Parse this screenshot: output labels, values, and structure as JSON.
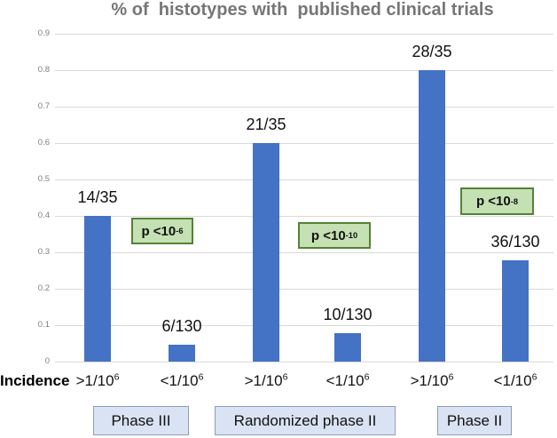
{
  "title": "% of  histotypes with  published clinical trials",
  "y_axis": {
    "ticks": [
      "0.9",
      "0.8",
      "0.7",
      "0.6",
      "0.5",
      "0.4",
      "0.3",
      "0.2",
      "0.1",
      "0"
    ],
    "min": 0,
    "max": 0.9
  },
  "x_axis": {
    "axis_label": "Incidence",
    "labels": [
      {
        "base": ">1/10",
        "sup": "6"
      },
      {
        "base": "<1/10",
        "sup": "6"
      },
      {
        "base": ">1/10",
        "sup": "6"
      },
      {
        "base": "<1/10",
        "sup": "6"
      },
      {
        "base": ">1/10",
        "sup": "6"
      },
      {
        "base": "<1/10",
        "sup": "6"
      }
    ]
  },
  "bars": {
    "labels": [
      "14/35",
      "6/130",
      "21/35",
      "10/130",
      "28/35",
      "36/130"
    ]
  },
  "p_boxes": [
    {
      "base": "p <10",
      "sup": "-6",
      "text": "p <10⁻⁶"
    },
    {
      "base": "p <10",
      "sup": "-10",
      "text": "p <10⁻¹⁰"
    },
    {
      "base": "p <10",
      "sup": "-8",
      "text": "p <10⁻⁸"
    }
  ],
  "groups": [
    "Phase III",
    "Randomized phase II",
    "Phase II"
  ],
  "colors": {
    "bar": "#4472c4",
    "title": "#767676",
    "gridline": "#d9d9d9",
    "tick": "#7d7d7d",
    "p_box_fill": "#c5e0b3",
    "p_box_border": "#548235",
    "phase_box_fill": "#dae3f3",
    "phase_box_border": "#8e9cba"
  },
  "chart_data": {
    "type": "bar",
    "title": "% of histotypes with published clinical trials",
    "categories": [
      "Phase III >1/10⁶",
      "Phase III <1/10⁶",
      "Randomized phase II >1/10⁶",
      "Randomized phase II <1/10⁶",
      "Phase II >1/10⁶",
      "Phase II <1/10⁶"
    ],
    "x_tick_labels": [
      ">1/10⁶",
      "<1/10⁶",
      ">1/10⁶",
      "<1/10⁶",
      ">1/10⁶",
      "<1/10⁶"
    ],
    "values": [
      0.4,
      0.046,
      0.6,
      0.077,
      0.8,
      0.277
    ],
    "bar_labels": [
      "14/35",
      "6/130",
      "21/35",
      "10/130",
      "28/35",
      "36/130"
    ],
    "group_labels": [
      "Phase III",
      "Randomized phase II",
      "Phase II"
    ],
    "p_values": [
      "p <10⁻⁶",
      "p <10⁻¹⁰",
      "p <10⁻⁸"
    ],
    "xlabel": "Incidence",
    "ylabel": "",
    "ylim": [
      0,
      0.9
    ],
    "y_tick_step": 0.1,
    "grid": true,
    "legend": false,
    "bar_color": "#4472c4"
  }
}
